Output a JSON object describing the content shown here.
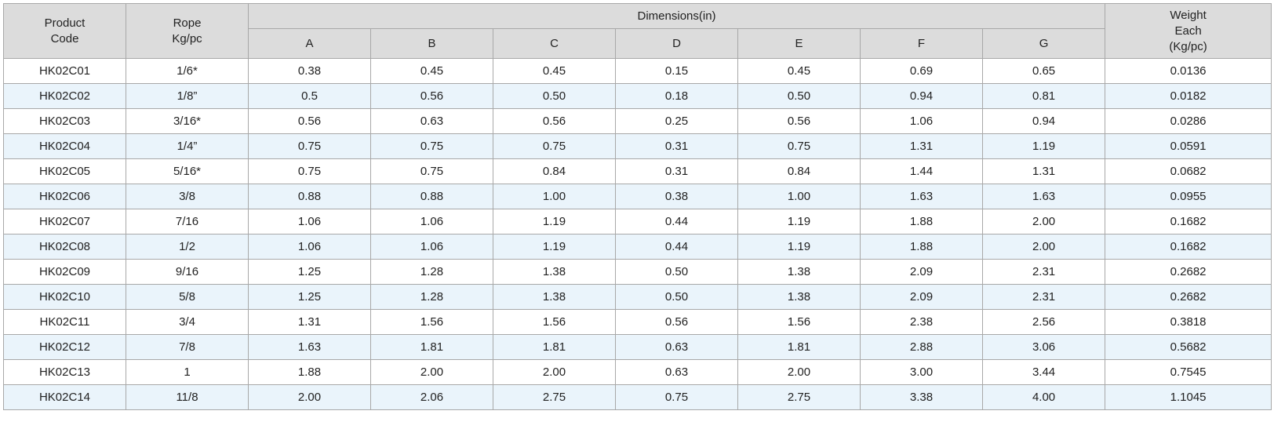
{
  "header": {
    "product_code": [
      "Product",
      "Code"
    ],
    "rope": [
      "Rope",
      "Kg/pc"
    ],
    "dimensions": "Dimensions(in)",
    "dim_cols": [
      "A",
      "B",
      "C",
      "D",
      "E",
      "F",
      "G"
    ],
    "weight": [
      "Weight",
      "Each",
      "(Kg/pc)"
    ]
  },
  "rows": [
    [
      "HK02C01",
      "1/6*",
      "0.38",
      "0.45",
      "0.45",
      "0.15",
      "0.45",
      "0.69",
      "0.65",
      "0.0136"
    ],
    [
      "HK02C02",
      "1/8”",
      "0.5",
      "0.56",
      "0.50",
      "0.18",
      "0.50",
      "0.94",
      "0.81",
      "0.0182"
    ],
    [
      "HK02C03",
      "3/16*",
      "0.56",
      "0.63",
      "0.56",
      "0.25",
      "0.56",
      "1.06",
      "0.94",
      "0.0286"
    ],
    [
      "HK02C04",
      "1/4”",
      "0.75",
      "0.75",
      "0.75",
      "0.31",
      "0.75",
      "1.31",
      "1.19",
      "0.0591"
    ],
    [
      "HK02C05",
      "5/16*",
      "0.75",
      "0.75",
      "0.84",
      "0.31",
      "0.84",
      "1.44",
      "1.31",
      "0.0682"
    ],
    [
      "HK02C06",
      "3/8",
      "0.88",
      "0.88",
      "1.00",
      "0.38",
      "1.00",
      "1.63",
      "1.63",
      "0.0955"
    ],
    [
      "HK02C07",
      "7/16",
      "1.06",
      "1.06",
      "1.19",
      "0.44",
      "1.19",
      "1.88",
      "2.00",
      "0.1682"
    ],
    [
      "HK02C08",
      "1/2",
      "1.06",
      "1.06",
      "1.19",
      "0.44",
      "1.19",
      "1.88",
      "2.00",
      "0.1682"
    ],
    [
      "HK02C09",
      "9/16",
      "1.25",
      "1.28",
      "1.38",
      "0.50",
      "1.38",
      "2.09",
      "2.31",
      "0.2682"
    ],
    [
      "HK02C10",
      "5/8",
      "1.25",
      "1.28",
      "1.38",
      "0.50",
      "1.38",
      "2.09",
      "2.31",
      "0.2682"
    ],
    [
      "HK02C11",
      "3/4",
      "1.31",
      "1.56",
      "1.56",
      "0.56",
      "1.56",
      "2.38",
      "2.56",
      "0.3818"
    ],
    [
      "HK02C12",
      "7/8",
      "1.63",
      "1.81",
      "1.81",
      "0.63",
      "1.81",
      "2.88",
      "3.06",
      "0.5682"
    ],
    [
      "HK02C13",
      "1",
      "1.88",
      "2.00",
      "2.00",
      "0.63",
      "2.00",
      "3.00",
      "3.44",
      "0.7545"
    ],
    [
      "HK02C14",
      "11/8",
      "2.00",
      "2.06",
      "2.75",
      "0.75",
      "2.75",
      "3.38",
      "4.00",
      "1.1045"
    ]
  ],
  "colors": {
    "header_bg": "#dcdcdc",
    "row_alt_bg": "#eaf4fb",
    "border": "#a8a8a8"
  }
}
